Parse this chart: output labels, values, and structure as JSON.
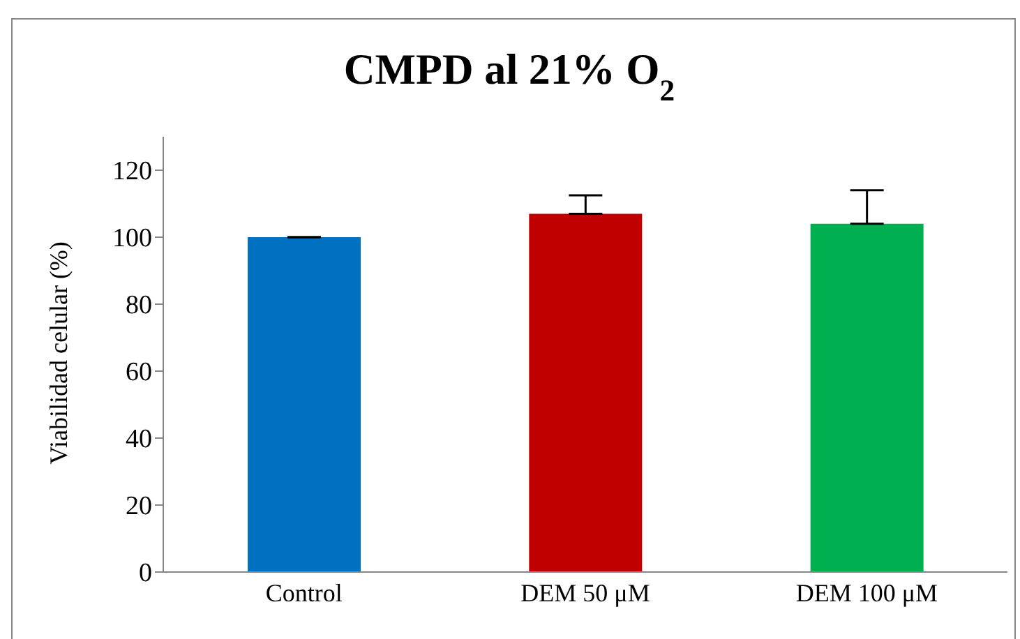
{
  "chart_data": {
    "type": "bar",
    "title": "CMPD al 21% O$_{2}$",
    "ylabel": "Viabilidad celular  (%)",
    "categories": [
      "Control",
      "DEM 50 μM",
      "DEM 100 μM"
    ],
    "values": [
      100,
      107,
      104
    ],
    "colors": [
      "#0070c0",
      "#c00000",
      "#00b050"
    ],
    "errors": [
      null,
      [
        107,
        112.5
      ],
      [
        104,
        114
      ]
    ],
    "ylim": [
      0,
      130
    ],
    "yticks": [
      0,
      20,
      40,
      60,
      80,
      100,
      120
    ],
    "grid": false,
    "legend": false
  }
}
